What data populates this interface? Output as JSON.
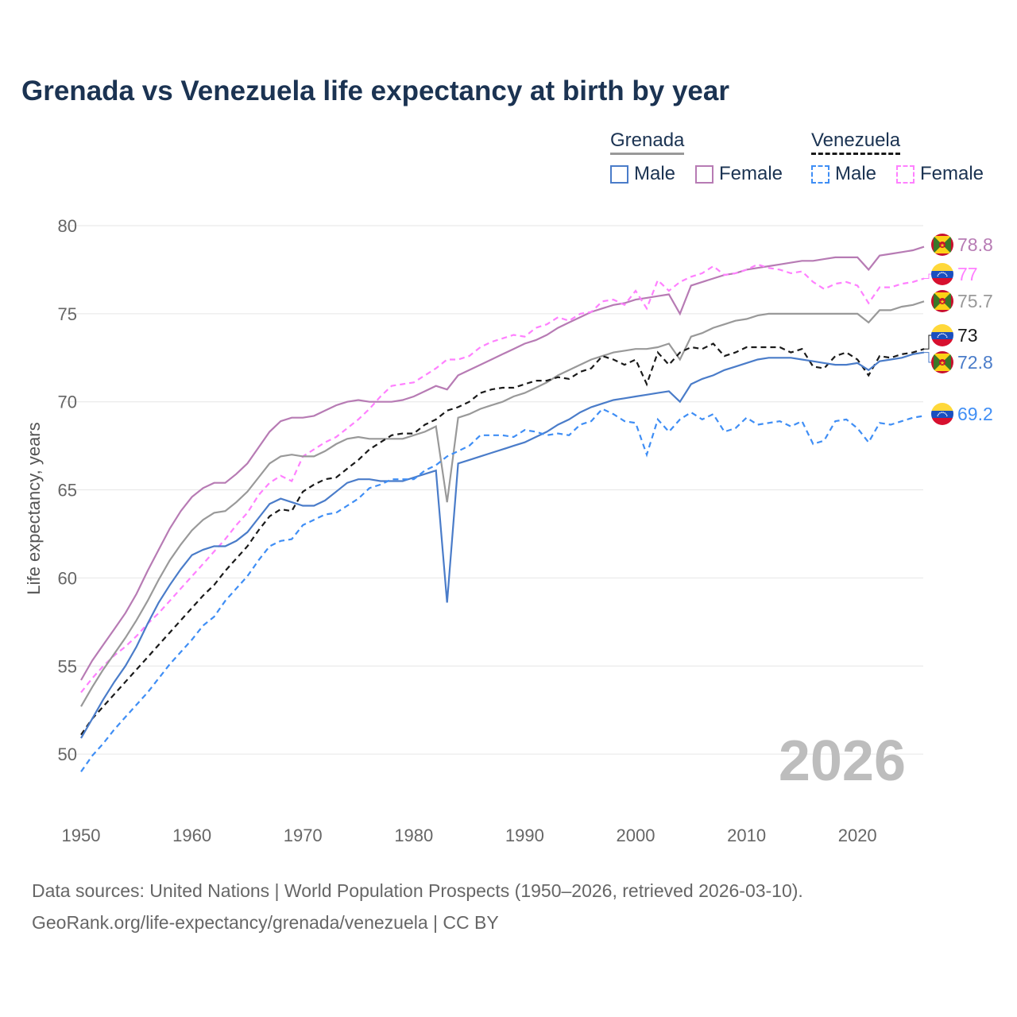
{
  "title": "Grenada vs Venezuela life expectancy at birth by year",
  "legend": {
    "groups": [
      {
        "name": "Grenada",
        "items": [
          "Male",
          "Female"
        ]
      },
      {
        "name": "Venezuela",
        "items": [
          "Male",
          "Female"
        ]
      }
    ]
  },
  "year_watermark": "2026",
  "footer": {
    "line1": "Data sources: United Nations | World Population Prospects (1950–2026, retrieved 2026-03-10).",
    "line2": "GeoRank.org/life-expectancy/grenada/venezuela | CC BY"
  },
  "chart_data": {
    "type": "line",
    "title": "Grenada vs Venezuela life expectancy at birth by year",
    "xlabel": "",
    "ylabel": "Life expectancy, years",
    "xlim": [
      1950,
      2026
    ],
    "ylim": [
      47,
      81
    ],
    "xticks": [
      "1950",
      "1960",
      "1970",
      "1980",
      "1990",
      "2000",
      "2010",
      "2020"
    ],
    "yticks": [
      "50",
      "55",
      "60",
      "65",
      "70",
      "75",
      "80"
    ],
    "grid": true,
    "legend_position": "top-right",
    "x_start": 1950,
    "series": [
      {
        "name": "Grenada Female",
        "country": "Grenada",
        "sex": "Female",
        "color": "#b77bb4",
        "dashed": false,
        "end_label": "78.8",
        "flag": "grenada",
        "values": [
          54.2,
          55.3,
          56.2,
          57.1,
          58.0,
          59.1,
          60.4,
          61.6,
          62.8,
          63.8,
          64.6,
          65.1,
          65.4,
          65.4,
          65.9,
          66.5,
          67.4,
          68.3,
          68.9,
          69.1,
          69.1,
          69.2,
          69.5,
          69.8,
          70.0,
          70.1,
          70.0,
          70.0,
          70.0,
          70.1,
          70.3,
          70.6,
          70.9,
          70.7,
          71.5,
          71.8,
          72.1,
          72.4,
          72.7,
          73.0,
          73.3,
          73.5,
          73.8,
          74.2,
          74.5,
          74.8,
          75.1,
          75.3,
          75.5,
          75.6,
          75.8,
          75.9,
          76.0,
          76.1,
          75.0,
          76.6,
          76.8,
          77.0,
          77.2,
          77.3,
          77.5,
          77.6,
          77.7,
          77.8,
          77.9,
          78.0,
          78.0,
          78.1,
          78.2,
          78.2,
          78.2,
          77.5,
          78.3,
          78.4,
          78.5,
          78.6,
          78.8
        ]
      },
      {
        "name": "Venezuela Female",
        "country": "Venezuela",
        "sex": "Female",
        "color": "#ff80ff",
        "dashed": true,
        "end_label": "77",
        "flag": "venezuela",
        "values": [
          53.5,
          54.3,
          55.0,
          55.6,
          56.1,
          56.7,
          57.4,
          58.0,
          58.7,
          59.4,
          60.1,
          60.8,
          61.5,
          62.2,
          63.0,
          63.7,
          64.7,
          65.4,
          65.8,
          65.5,
          66.9,
          67.3,
          67.7,
          68.0,
          68.5,
          69.0,
          69.6,
          70.3,
          70.9,
          71.0,
          71.1,
          71.5,
          71.9,
          72.4,
          72.4,
          72.6,
          73.1,
          73.4,
          73.6,
          73.8,
          73.7,
          74.2,
          74.4,
          74.8,
          74.6,
          75.0,
          75.1,
          75.7,
          75.8,
          75.5,
          76.3,
          75.3,
          76.9,
          76.3,
          76.8,
          77.1,
          77.3,
          77.7,
          77.2,
          77.3,
          77.5,
          77.8,
          77.6,
          77.5,
          77.3,
          77.4,
          76.8,
          76.4,
          76.7,
          76.8,
          76.6,
          75.6,
          76.5,
          76.5,
          76.7,
          76.8,
          77.0
        ]
      },
      {
        "name": "Grenada Total",
        "country": "Grenada",
        "sex": "Total",
        "color": "#999999",
        "dashed": false,
        "end_label": "75.7",
        "flag": "grenada",
        "values": [
          52.7,
          53.8,
          54.8,
          55.7,
          56.6,
          57.6,
          58.7,
          59.9,
          61.0,
          61.9,
          62.7,
          63.3,
          63.7,
          63.8,
          64.3,
          64.9,
          65.7,
          66.5,
          66.9,
          67.0,
          66.9,
          66.9,
          67.2,
          67.6,
          67.9,
          68.0,
          67.9,
          67.9,
          67.9,
          67.9,
          68.1,
          68.3,
          68.6,
          64.3,
          69.1,
          69.3,
          69.6,
          69.8,
          70.0,
          70.3,
          70.5,
          70.8,
          71.1,
          71.5,
          71.8,
          72.1,
          72.4,
          72.6,
          72.8,
          72.9,
          73.0,
          73.0,
          73.1,
          73.3,
          72.4,
          73.7,
          73.9,
          74.2,
          74.4,
          74.6,
          74.7,
          74.9,
          75.0,
          75.0,
          75.0,
          75.0,
          75.0,
          75.0,
          75.0,
          75.0,
          75.0,
          74.5,
          75.2,
          75.2,
          75.4,
          75.5,
          75.7
        ]
      },
      {
        "name": "Venezuela Total",
        "country": "Venezuela",
        "sex": "Total",
        "color": "#1a1a1a",
        "dashed": true,
        "end_label": "73",
        "flag": "venezuela",
        "values": [
          51.1,
          52.0,
          52.7,
          53.4,
          54.1,
          54.8,
          55.5,
          56.2,
          56.9,
          57.6,
          58.3,
          59.0,
          59.6,
          60.4,
          61.1,
          61.8,
          62.7,
          63.5,
          63.9,
          63.8,
          64.9,
          65.3,
          65.6,
          65.7,
          66.2,
          66.7,
          67.3,
          67.7,
          68.1,
          68.2,
          68.2,
          68.7,
          69.0,
          69.5,
          69.7,
          70.0,
          70.5,
          70.7,
          70.8,
          70.8,
          71.0,
          71.2,
          71.2,
          71.4,
          71.3,
          71.7,
          71.9,
          72.6,
          72.4,
          72.1,
          72.4,
          71.0,
          72.8,
          72.1,
          72.8,
          73.1,
          73.0,
          73.3,
          72.6,
          72.8,
          73.1,
          73.1,
          73.1,
          73.1,
          72.8,
          73.0,
          72.0,
          71.9,
          72.6,
          72.8,
          72.4,
          71.5,
          72.6,
          72.5,
          72.7,
          72.8,
          73.0
        ]
      },
      {
        "name": "Grenada Male",
        "country": "Grenada",
        "sex": "Male",
        "color": "#4a7cc9",
        "dashed": false,
        "end_label": "72.8",
        "flag": "grenada",
        "values": [
          50.9,
          52.0,
          53.1,
          54.1,
          55.0,
          56.1,
          57.4,
          58.6,
          59.6,
          60.5,
          61.3,
          61.6,
          61.8,
          61.8,
          62.1,
          62.6,
          63.4,
          64.2,
          64.5,
          64.3,
          64.1,
          64.1,
          64.4,
          64.9,
          65.4,
          65.6,
          65.6,
          65.5,
          65.5,
          65.5,
          65.7,
          65.9,
          66.1,
          58.6,
          66.5,
          66.7,
          66.9,
          67.1,
          67.3,
          67.5,
          67.7,
          68.0,
          68.3,
          68.7,
          69.0,
          69.4,
          69.7,
          69.9,
          70.1,
          70.2,
          70.3,
          70.4,
          70.5,
          70.6,
          70.0,
          71.0,
          71.3,
          71.5,
          71.8,
          72.0,
          72.2,
          72.4,
          72.5,
          72.5,
          72.5,
          72.4,
          72.3,
          72.2,
          72.1,
          72.1,
          72.2,
          71.8,
          72.3,
          72.4,
          72.5,
          72.7,
          72.8
        ]
      },
      {
        "name": "Venezuela Male",
        "country": "Venezuela",
        "sex": "Male",
        "color": "#3f8ef5",
        "dashed": true,
        "end_label": "69.2",
        "flag": "venezuela",
        "values": [
          49.0,
          49.9,
          50.6,
          51.4,
          52.1,
          52.8,
          53.5,
          54.3,
          55.1,
          55.8,
          56.5,
          57.3,
          57.8,
          58.7,
          59.4,
          60.1,
          61.0,
          61.8,
          62.1,
          62.2,
          63.0,
          63.3,
          63.6,
          63.7,
          64.1,
          64.5,
          65.1,
          65.3,
          65.6,
          65.6,
          65.6,
          66.1,
          66.4,
          66.9,
          67.2,
          67.5,
          68.1,
          68.1,
          68.1,
          68.0,
          68.4,
          68.3,
          68.1,
          68.2,
          68.1,
          68.7,
          68.9,
          69.6,
          69.3,
          68.9,
          68.8,
          67.0,
          69.0,
          68.3,
          69.0,
          69.4,
          69.0,
          69.3,
          68.3,
          68.5,
          69.1,
          68.7,
          68.8,
          68.9,
          68.6,
          68.9,
          67.6,
          67.8,
          68.9,
          69.0,
          68.5,
          67.7,
          68.8,
          68.7,
          68.9,
          69.1,
          69.2
        ]
      }
    ]
  }
}
